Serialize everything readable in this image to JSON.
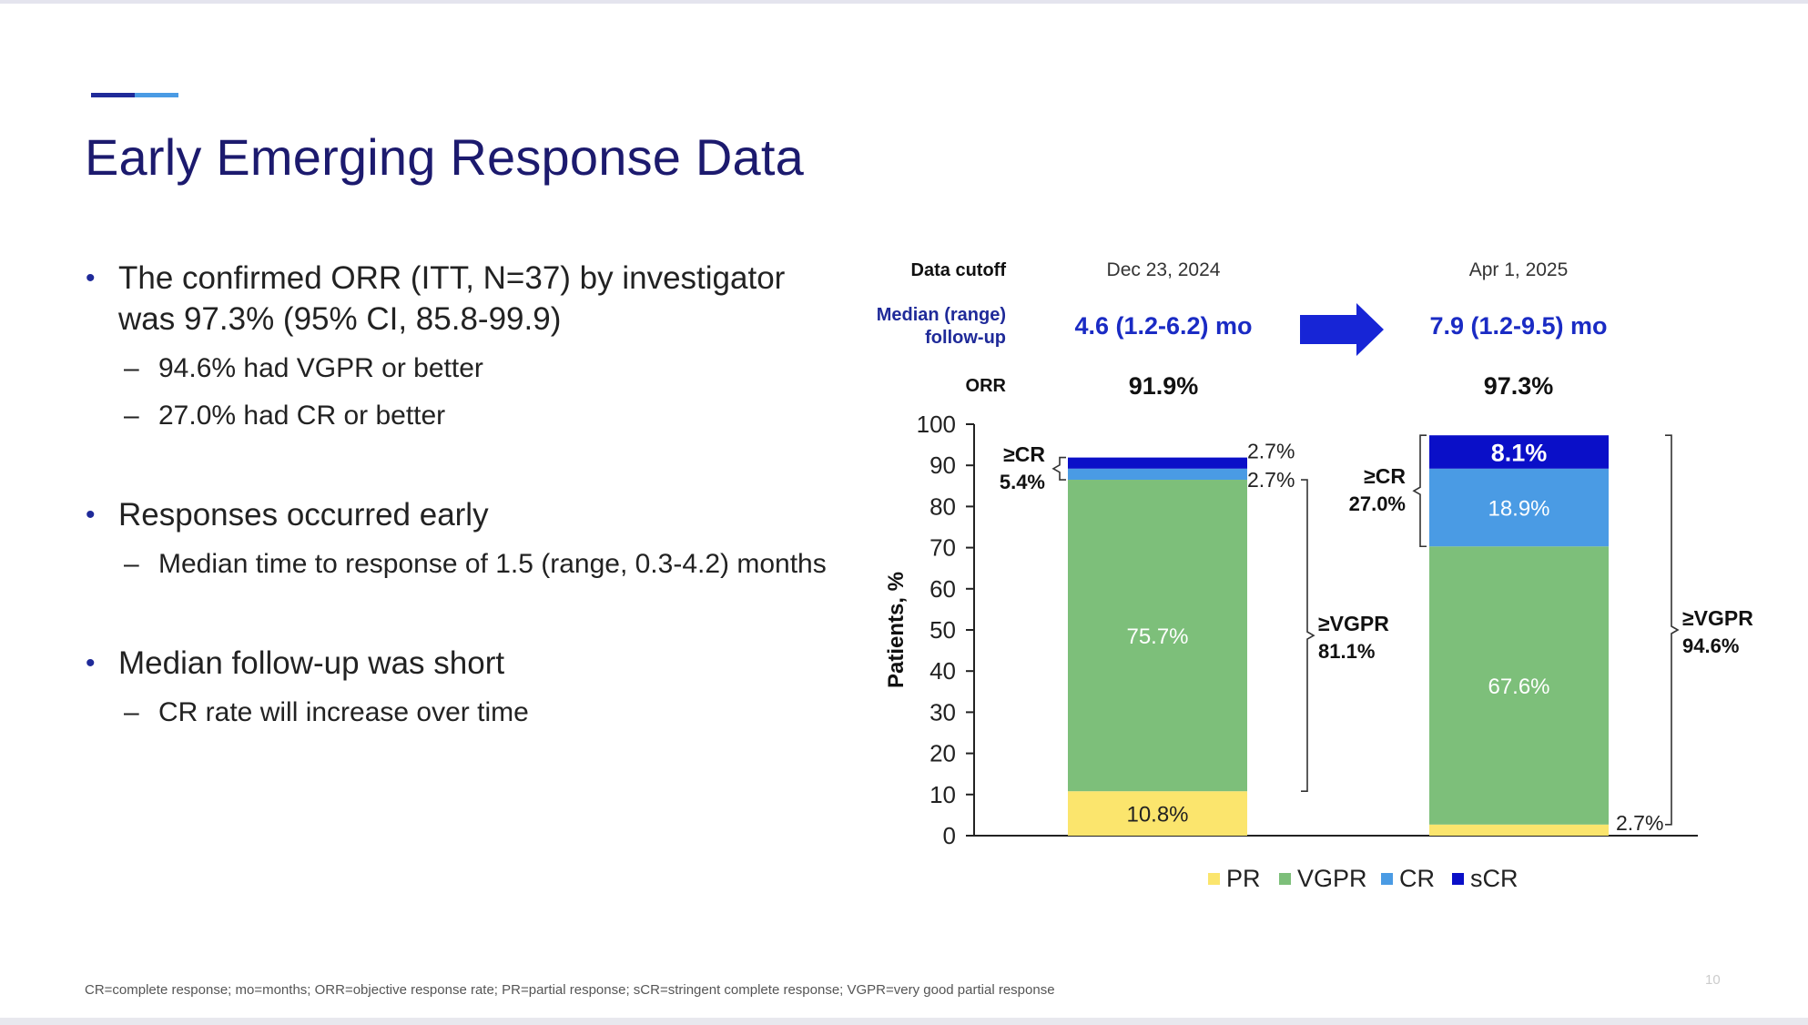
{
  "slide": {
    "title": "Early Emerging Response Data",
    "accent_colors": [
      "#1f2a99",
      "#4a9be4"
    ],
    "title_color": "#1c1a6e",
    "bullet_color": "#1f2a99",
    "page_number": "10",
    "footnote": "CR=complete response; mo=months; ORR=objective response rate; PR=partial response; sCR=stringent complete response; VGPR=very good partial response"
  },
  "bullets": [
    {
      "text": "The confirmed ORR (ITT, N=37) by investigator was 97.3% (95% CI, 85.8-99.9)",
      "subs": [
        "94.6% had VGPR or better",
        "27.0% had CR or better"
      ]
    },
    {
      "text": "Responses occurred early",
      "subs": [
        "Median time to response of 1.5 (range, 0.3-4.2) months"
      ]
    },
    {
      "text": "Median follow-up was short",
      "subs": [
        "CR rate will increase over time"
      ]
    }
  ],
  "chart_data": {
    "type": "bar",
    "stacked": true,
    "header": {
      "cutoff_label": "Data cutoff",
      "followup_label_line1": "Median (range)",
      "followup_label_line2": "follow-up",
      "orr_label": "ORR"
    },
    "categories": [
      "Dec 23, 2024",
      "Apr 1, 2025"
    ],
    "followup": [
      "4.6 (1.2-6.2) mo",
      "7.9 (1.2-9.5) mo"
    ],
    "orr": [
      "91.9%",
      "97.3%"
    ],
    "series": [
      {
        "name": "PR",
        "color": "#fbe56d",
        "values": [
          10.8,
          2.7
        ],
        "labels": [
          "10.8%",
          "2.7%"
        ]
      },
      {
        "name": "VGPR",
        "color": "#7dbf7a",
        "values": [
          75.7,
          67.6
        ],
        "labels": [
          "75.7%",
          "67.6%"
        ]
      },
      {
        "name": "CR",
        "color": "#4a9be4",
        "values": [
          2.7,
          18.9
        ],
        "labels": [
          "2.7%",
          "18.9%"
        ]
      },
      {
        "name": "sCR",
        "color": "#0a0fc8",
        "values": [
          2.7,
          8.1
        ],
        "labels": [
          "2.7%",
          "8.1%"
        ]
      }
    ],
    "ylabel": "Patients, %",
    "ylim": [
      0,
      100
    ],
    "yticks": [
      0,
      10,
      20,
      30,
      40,
      50,
      60,
      70,
      80,
      90,
      100
    ],
    "brackets": [
      {
        "kind": "cr",
        "label": "≥CR",
        "value": "5.4%"
      },
      {
        "kind": "vgpr",
        "label": "≥VGPR",
        "value": "81.1%"
      },
      {
        "kind": "cr",
        "label": "≥CR",
        "value": "27.0%"
      },
      {
        "kind": "vgpr",
        "label": "≥VGPR",
        "value": "94.6%"
      }
    ],
    "arrow_color": "#1725d6",
    "legend": [
      "PR",
      "VGPR",
      "CR",
      "sCR"
    ]
  }
}
